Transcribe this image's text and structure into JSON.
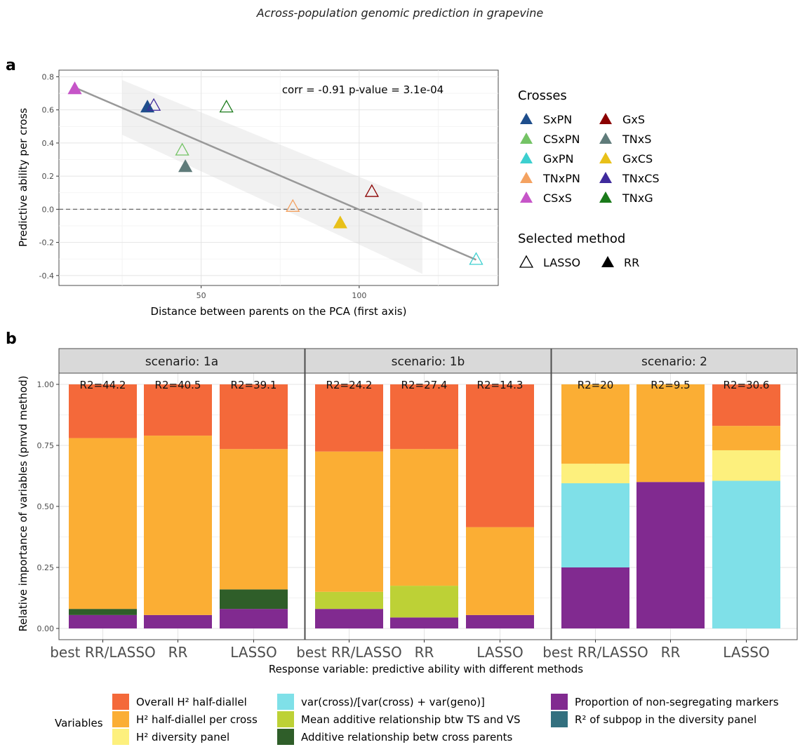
{
  "header": {
    "running_title": "Across-population genomic prediction in grapevine"
  },
  "panel_a": {
    "label": "a",
    "xlabel": "Distance between parents on the PCA (first axis)",
    "ylabel": "Predictive ability per cross",
    "annotation": "corr = -0.91 p-value =  3.1e-04",
    "legend_crosses_title": "Crosses",
    "legend_method_title": "Selected method",
    "method_labels": {
      "lasso": "LASSO",
      "rr": "RR"
    }
  },
  "panel_b": {
    "label": "b",
    "xlabel": "Response variable: predictive ability with different methods",
    "ylabel": "Relative importance of variables (pmvd method)",
    "legend_title": "Variables"
  },
  "chart_data": [
    {
      "type": "scatter",
      "xlabel": "Distance between parents on the PCA (first axis)",
      "ylabel": "Predictive ability per cross",
      "xlim": [
        5,
        144
      ],
      "ylim": [
        -0.46,
        0.84
      ],
      "xticks": [
        50,
        100
      ],
      "yticks": [
        -0.4,
        -0.2,
        0.0,
        0.2,
        0.4,
        0.6,
        0.8
      ],
      "ytick_labels": [
        "-0.4",
        "-0.2",
        "0.0",
        "0.2",
        "0.4",
        "0.6",
        "0.8"
      ],
      "grid": true,
      "legend_position": "right",
      "reference_line": {
        "y": 0.0,
        "style": "dashed"
      },
      "regression": {
        "x": [
          10,
          137
        ],
        "y": [
          0.735,
          -0.305
        ],
        "ci_x": [
          25,
          120
        ],
        "ci_lower": [
          0.45,
          -0.39
        ],
        "ci_upper": [
          0.78,
          0.04
        ]
      },
      "annotation": "corr = -0.91 p-value =  3.1e-04",
      "series": [
        {
          "name": "SxPN",
          "color": "#1f4e8c"
        },
        {
          "name": "CSxPN",
          "color": "#74c365"
        },
        {
          "name": "GxPN",
          "color": "#3ccfcf"
        },
        {
          "name": "TNxPN",
          "color": "#f4a261"
        },
        {
          "name": "CSxS",
          "color": "#c655c8"
        },
        {
          "name": "GxS",
          "color": "#8b0000"
        },
        {
          "name": "TNxS",
          "color": "#5f7b7a"
        },
        {
          "name": "GxCS",
          "color": "#e8c019"
        },
        {
          "name": "TNxCS",
          "color": "#3f2a9c"
        },
        {
          "name": "TNxG",
          "color": "#1a7a1a"
        }
      ],
      "points": [
        {
          "cross": "CSxS",
          "x": 10,
          "y": 0.73,
          "method": "RR"
        },
        {
          "cross": "SxPN",
          "x": 33,
          "y": 0.62,
          "method": "RR"
        },
        {
          "cross": "TNxCS",
          "x": 35,
          "y": 0.63,
          "method": "LASSO"
        },
        {
          "cross": "CSxPN",
          "x": 44,
          "y": 0.36,
          "method": "LASSO"
        },
        {
          "cross": "TNxS",
          "x": 45,
          "y": 0.26,
          "method": "RR"
        },
        {
          "cross": "TNxG",
          "x": 58,
          "y": 0.62,
          "method": "LASSO"
        },
        {
          "cross": "TNxPN",
          "x": 79,
          "y": 0.02,
          "method": "LASSO"
        },
        {
          "cross": "GxCS",
          "x": 94,
          "y": -0.08,
          "method": "RR"
        },
        {
          "cross": "GxS",
          "x": 104,
          "y": 0.11,
          "method": "LASSO"
        },
        {
          "cross": "GxPN",
          "x": 137,
          "y": -0.3,
          "method": "LASSO"
        }
      ]
    },
    {
      "type": "bar",
      "stacked": true,
      "xlabel": "Response variable: predictive ability with different methods",
      "ylabel": "Relative importance of variables (pmvd method)",
      "ylim": [
        0,
        1
      ],
      "yticks": [
        0.0,
        0.25,
        0.5,
        0.75,
        1.0
      ],
      "ytick_labels": [
        "0.00",
        "0.25",
        "0.50",
        "0.75",
        "1.00"
      ],
      "grid": true,
      "legend_position": "bottom",
      "variables": [
        {
          "name": "Overall H² half-diallel",
          "color": "#f4693a"
        },
        {
          "name": "H² half-diallel per cross",
          "color": "#fbae34"
        },
        {
          "name": "H² diversity panel",
          "color": "#fdf07d"
        },
        {
          "name": "var(cross)/[var(cross) + var(geno)]",
          "color": "#7fe0e8"
        },
        {
          "name": "Mean additive relationship btw TS and VS",
          "color": "#bdd136"
        },
        {
          "name": "Additive relationship betw cross parents",
          "color": "#2f5e29"
        },
        {
          "name": "Proportion of non-segregating markers",
          "color": "#812a90"
        },
        {
          "name": "R² of subpop in the diversity panel",
          "color": "#33707f"
        }
      ],
      "stack_order_bottom_to_top": [
        "Proportion of non-segregating markers",
        "R² of subpop in the diversity panel",
        "Additive relationship betw cross parents",
        "Mean additive relationship btw TS and VS",
        "var(cross)/[var(cross) + var(geno)]",
        "H² diversity panel",
        "H² half-diallel per cross",
        "Overall H² half-diallel"
      ],
      "facets": [
        {
          "strip": "scenario: 1a",
          "categories": [
            "best RR/LASSO",
            "RR",
            "LASSO"
          ],
          "r2_labels": [
            "R2=44.2",
            "R2=40.5",
            "R2=39.1"
          ],
          "series": [
            {
              "name": "Overall H² half-diallel",
              "values": [
                0.22,
                0.21,
                0.265
              ]
            },
            {
              "name": "H² half-diallel per cross",
              "values": [
                0.7,
                0.735,
                0.575
              ]
            },
            {
              "name": "H² diversity panel",
              "values": [
                0,
                0,
                0
              ]
            },
            {
              "name": "var(cross)/[var(cross) + var(geno)]",
              "values": [
                0,
                0,
                0
              ]
            },
            {
              "name": "Mean additive relationship btw TS and VS",
              "values": [
                0,
                0,
                0
              ]
            },
            {
              "name": "Additive relationship betw cross parents",
              "values": [
                0.025,
                0,
                0.08
              ]
            },
            {
              "name": "Proportion of non-segregating markers",
              "values": [
                0.055,
                0.055,
                0.08
              ]
            },
            {
              "name": "R² of subpop in the diversity panel",
              "values": [
                0,
                0,
                0
              ]
            }
          ]
        },
        {
          "strip": "scenario: 1b",
          "categories": [
            "best RR/LASSO",
            "RR",
            "LASSO"
          ],
          "r2_labels": [
            "R2=24.2",
            "R2=27.4",
            "R2=14.3"
          ],
          "series": [
            {
              "name": "Overall H² half-diallel",
              "values": [
                0.275,
                0.265,
                0.585
              ]
            },
            {
              "name": "H² half-diallel per cross",
              "values": [
                0.575,
                0.56,
                0.36
              ]
            },
            {
              "name": "H² diversity panel",
              "values": [
                0,
                0,
                0
              ]
            },
            {
              "name": "var(cross)/[var(cross) + var(geno)]",
              "values": [
                0,
                0,
                0
              ]
            },
            {
              "name": "Mean additive relationship btw TS and VS",
              "values": [
                0.07,
                0.13,
                0
              ]
            },
            {
              "name": "Additive relationship betw cross parents",
              "values": [
                0,
                0,
                0
              ]
            },
            {
              "name": "Proportion of non-segregating markers",
              "values": [
                0.08,
                0.045,
                0.055
              ]
            },
            {
              "name": "R² of subpop in the diversity panel",
              "values": [
                0,
                0,
                0
              ]
            }
          ]
        },
        {
          "strip": "scenario: 2",
          "categories": [
            "best RR/LASSO",
            "RR",
            "LASSO"
          ],
          "r2_labels": [
            "R2=20",
            "R2=9.5",
            "R2=30.6"
          ],
          "series": [
            {
              "name": "Overall H² half-diallel",
              "values": [
                0,
                0,
                0.17
              ]
            },
            {
              "name": "H² half-diallel per cross",
              "values": [
                0.325,
                0.4,
                0.1
              ]
            },
            {
              "name": "H² diversity panel",
              "values": [
                0.08,
                0,
                0.125
              ]
            },
            {
              "name": "var(cross)/[var(cross) + var(geno)]",
              "values": [
                0.345,
                0,
                0.605
              ]
            },
            {
              "name": "Mean additive relationship btw TS and VS",
              "values": [
                0,
                0,
                0
              ]
            },
            {
              "name": "Additive relationship betw cross parents",
              "values": [
                0,
                0,
                0
              ]
            },
            {
              "name": "Proportion of non-segregating markers",
              "values": [
                0.25,
                0.6,
                0
              ]
            },
            {
              "name": "R² of subpop in the diversity panel",
              "values": [
                0,
                0,
                0
              ]
            }
          ]
        }
      ]
    }
  ]
}
